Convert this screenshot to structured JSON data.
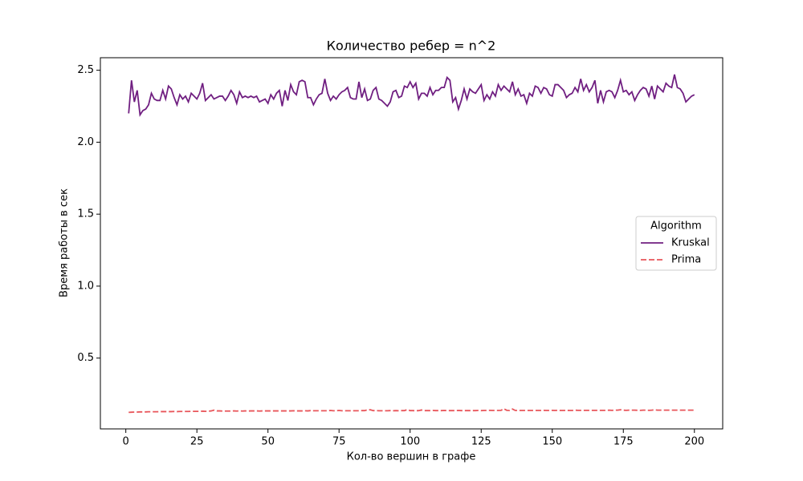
{
  "chart_data": {
    "type": "line",
    "title": "Количество ребер = n^2",
    "xlabel": "Кол-во вершин в графе",
    "ylabel": "Время работы в сек",
    "x": [
      1,
      2,
      3,
      4,
      5,
      6,
      7,
      8,
      9,
      10,
      11,
      12,
      13,
      14,
      15,
      16,
      17,
      18,
      19,
      20,
      21,
      22,
      23,
      24,
      25,
      26,
      27,
      28,
      29,
      30,
      31,
      32,
      33,
      34,
      35,
      36,
      37,
      38,
      39,
      40,
      41,
      42,
      43,
      44,
      45,
      46,
      47,
      48,
      49,
      50,
      51,
      52,
      53,
      54,
      55,
      56,
      57,
      58,
      59,
      60,
      61,
      62,
      63,
      64,
      65,
      66,
      67,
      68,
      69,
      70,
      71,
      72,
      73,
      74,
      75,
      76,
      77,
      78,
      79,
      80,
      81,
      82,
      83,
      84,
      85,
      86,
      87,
      88,
      89,
      90,
      91,
      92,
      93,
      94,
      95,
      96,
      97,
      98,
      99,
      100,
      101,
      102,
      103,
      104,
      105,
      106,
      107,
      108,
      109,
      110,
      111,
      112,
      113,
      114,
      115,
      116,
      117,
      118,
      119,
      120,
      121,
      122,
      123,
      124,
      125,
      126,
      127,
      128,
      129,
      130,
      131,
      132,
      133,
      134,
      135,
      136,
      137,
      138,
      139,
      140,
      141,
      142,
      143,
      144,
      145,
      146,
      147,
      148,
      149,
      150,
      151,
      152,
      153,
      154,
      155,
      156,
      157,
      158,
      159,
      160,
      161,
      162,
      163,
      164,
      165,
      166,
      167,
      168,
      169,
      170,
      171,
      172,
      173,
      174,
      175,
      176,
      177,
      178,
      179,
      180,
      181,
      182,
      183,
      184,
      185,
      186,
      187,
      188,
      189,
      190,
      191,
      192,
      193,
      194,
      195,
      196,
      197,
      198,
      199,
      200
    ],
    "series": [
      {
        "name": "Kruskal",
        "color": "#701f81",
        "dash": false,
        "values": [
          2.2,
          2.43,
          2.28,
          2.36,
          2.19,
          2.22,
          2.23,
          2.26,
          2.34,
          2.3,
          2.29,
          2.29,
          2.36,
          2.3,
          2.39,
          2.37,
          2.31,
          2.26,
          2.33,
          2.3,
          2.32,
          2.28,
          2.34,
          2.32,
          2.3,
          2.34,
          2.41,
          2.29,
          2.31,
          2.33,
          2.3,
          2.31,
          2.32,
          2.32,
          2.29,
          2.32,
          2.36,
          2.33,
          2.27,
          2.35,
          2.31,
          2.32,
          2.31,
          2.32,
          2.31,
          2.32,
          2.28,
          2.29,
          2.3,
          2.27,
          2.33,
          2.3,
          2.34,
          2.36,
          2.25,
          2.36,
          2.29,
          2.4,
          2.35,
          2.33,
          2.42,
          2.43,
          2.42,
          2.31,
          2.31,
          2.26,
          2.3,
          2.33,
          2.34,
          2.44,
          2.34,
          2.29,
          2.32,
          2.3,
          2.33,
          2.35,
          2.36,
          2.38,
          2.31,
          2.3,
          2.3,
          2.42,
          2.31,
          2.37,
          2.29,
          2.3,
          2.36,
          2.38,
          2.3,
          2.29,
          2.27,
          2.25,
          2.28,
          2.35,
          2.36,
          2.31,
          2.32,
          2.39,
          2.38,
          2.42,
          2.38,
          2.41,
          2.3,
          2.34,
          2.34,
          2.32,
          2.38,
          2.33,
          2.36,
          2.36,
          2.38,
          2.38,
          2.45,
          2.43,
          2.28,
          2.31,
          2.23,
          2.29,
          2.37,
          2.3,
          2.37,
          2.35,
          2.34,
          2.37,
          2.4,
          2.29,
          2.33,
          2.3,
          2.35,
          2.32,
          2.4,
          2.36,
          2.39,
          2.37,
          2.35,
          2.42,
          2.33,
          2.37,
          2.32,
          2.33,
          2.27,
          2.34,
          2.32,
          2.39,
          2.38,
          2.34,
          2.38,
          2.37,
          2.33,
          2.32,
          2.4,
          2.4,
          2.38,
          2.36,
          2.31,
          2.33,
          2.34,
          2.38,
          2.35,
          2.44,
          2.36,
          2.4,
          2.35,
          2.38,
          2.43,
          2.27,
          2.36,
          2.28,
          2.35,
          2.36,
          2.35,
          2.31,
          2.36,
          2.43,
          2.35,
          2.36,
          2.33,
          2.35,
          2.29,
          2.33,
          2.36,
          2.38,
          2.37,
          2.32,
          2.39,
          2.3,
          2.39,
          2.37,
          2.35,
          2.41,
          2.39,
          2.38,
          2.47,
          2.38,
          2.37,
          2.34,
          2.28,
          2.3,
          2.32,
          2.33
        ]
      },
      {
        "name": "Prima",
        "color": "#e8555a",
        "dash": true,
        "values": [
          0.123,
          0.124,
          0.125,
          0.125,
          0.126,
          0.126,
          0.126,
          0.127,
          0.127,
          0.127,
          0.127,
          0.128,
          0.128,
          0.128,
          0.128,
          0.128,
          0.129,
          0.128,
          0.129,
          0.129,
          0.129,
          0.129,
          0.13,
          0.13,
          0.13,
          0.13,
          0.131,
          0.13,
          0.131,
          0.133,
          0.138,
          0.133,
          0.133,
          0.132,
          0.132,
          0.132,
          0.132,
          0.133,
          0.132,
          0.133,
          0.132,
          0.133,
          0.132,
          0.133,
          0.133,
          0.133,
          0.132,
          0.133,
          0.133,
          0.133,
          0.133,
          0.133,
          0.133,
          0.133,
          0.133,
          0.133,
          0.133,
          0.133,
          0.134,
          0.133,
          0.133,
          0.133,
          0.134,
          0.133,
          0.135,
          0.134,
          0.134,
          0.134,
          0.134,
          0.134,
          0.134,
          0.136,
          0.134,
          0.134,
          0.136,
          0.134,
          0.134,
          0.134,
          0.134,
          0.134,
          0.134,
          0.134,
          0.135,
          0.135,
          0.14,
          0.141,
          0.135,
          0.135,
          0.134,
          0.134,
          0.134,
          0.134,
          0.135,
          0.134,
          0.135,
          0.134,
          0.135,
          0.135,
          0.142,
          0.135,
          0.135,
          0.134,
          0.135,
          0.139,
          0.135,
          0.135,
          0.135,
          0.136,
          0.135,
          0.135,
          0.135,
          0.136,
          0.135,
          0.135,
          0.135,
          0.135,
          0.136,
          0.135,
          0.135,
          0.135,
          0.135,
          0.135,
          0.135,
          0.136,
          0.135,
          0.136,
          0.136,
          0.137,
          0.136,
          0.136,
          0.136,
          0.137,
          0.148,
          0.137,
          0.136,
          0.146,
          0.136,
          0.136,
          0.136,
          0.136,
          0.136,
          0.136,
          0.136,
          0.136,
          0.136,
          0.136,
          0.137,
          0.136,
          0.136,
          0.137,
          0.136,
          0.137,
          0.136,
          0.136,
          0.137,
          0.136,
          0.136,
          0.138,
          0.137,
          0.137,
          0.137,
          0.137,
          0.137,
          0.137,
          0.137,
          0.137,
          0.137,
          0.137,
          0.137,
          0.138,
          0.137,
          0.138,
          0.138,
          0.141,
          0.138,
          0.137,
          0.138,
          0.138,
          0.138,
          0.137,
          0.137,
          0.138,
          0.138,
          0.137,
          0.138,
          0.141,
          0.138,
          0.138,
          0.138,
          0.138,
          0.138,
          0.138,
          0.138,
          0.138,
          0.138,
          0.138,
          0.138,
          0.138,
          0.138,
          0.138
        ]
      }
    ],
    "xlim": [
      -8.95,
      209.95
    ],
    "ylim": [
      0.008,
      2.587
    ],
    "xticks": [
      0,
      25,
      50,
      75,
      100,
      125,
      150,
      175,
      200
    ],
    "yticks": [
      0.5,
      {
        "value": 1,
        "label": "1.0"
      },
      1.5,
      {
        "value": 2,
        "label": "2.0"
      },
      2.5
    ],
    "legend_title": "Algorithm",
    "legend_loc": "center right",
    "grid": false
  }
}
